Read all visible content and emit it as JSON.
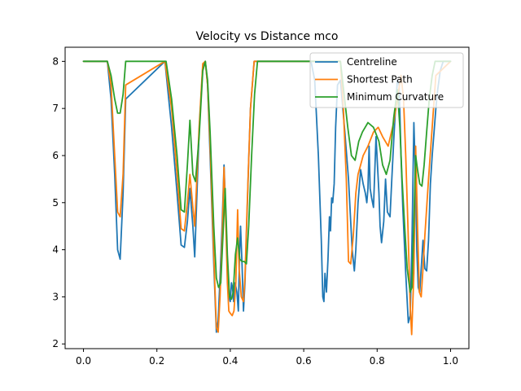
{
  "chart_data": {
    "type": "line",
    "title": "Velocity vs Distance mco",
    "xlabel": "",
    "ylabel": "",
    "xlim": [
      -0.05,
      1.05
    ],
    "ylim": [
      1.9,
      8.3
    ],
    "xticks": [
      0.0,
      0.2,
      0.4,
      0.6,
      0.8,
      1.0
    ],
    "xtick_labels": [
      "0.0",
      "0.2",
      "0.4",
      "0.6",
      "0.8",
      "1.0"
    ],
    "yticks": [
      2,
      3,
      4,
      5,
      6,
      7,
      8
    ],
    "ytick_labels": [
      "2",
      "3",
      "4",
      "5",
      "6",
      "7",
      "8"
    ],
    "grid": false,
    "legend_position": "top-right",
    "series": [
      {
        "name": "Centreline",
        "color": "#1f77b4",
        "x": [
          0.0,
          0.065,
          0.075,
          0.085,
          0.093,
          0.1,
          0.108,
          0.115,
          0.222,
          0.24,
          0.255,
          0.266,
          0.275,
          0.283,
          0.29,
          0.298,
          0.303,
          0.315,
          0.325,
          0.332,
          0.338,
          0.345,
          0.355,
          0.362,
          0.367,
          0.372,
          0.378,
          0.383,
          0.388,
          0.392,
          0.396,
          0.4,
          0.403,
          0.406,
          0.409,
          0.413,
          0.418,
          0.422,
          0.425,
          0.428,
          0.432,
          0.436,
          0.44,
          0.445,
          0.45,
          0.455,
          0.465,
          0.475,
          0.485,
          0.62,
          0.63,
          0.64,
          0.648,
          0.652,
          0.655,
          0.658,
          0.662,
          0.666,
          0.67,
          0.673,
          0.676,
          0.679,
          0.683,
          0.687,
          0.692,
          0.7,
          0.712,
          0.722,
          0.732,
          0.738,
          0.742,
          0.748,
          0.755,
          0.762,
          0.768,
          0.772,
          0.775,
          0.778,
          0.781,
          0.785,
          0.79,
          0.797,
          0.805,
          0.808,
          0.812,
          0.818,
          0.823,
          0.828,
          0.835,
          0.84,
          0.845,
          0.85,
          0.855,
          0.86,
          0.865,
          0.87,
          0.878,
          0.885,
          0.89,
          0.895,
          0.9,
          0.905,
          0.908,
          0.912,
          0.916,
          0.92,
          0.925,
          0.93,
          0.935,
          0.94,
          0.945,
          0.95,
          0.955,
          0.96,
          0.965,
          0.972,
          0.98,
          1.0
        ],
        "y": [
          8.0,
          8.0,
          7.2,
          5.6,
          4.0,
          3.8,
          5.2,
          7.2,
          8.0,
          6.6,
          5.2,
          4.1,
          4.05,
          4.6,
          5.3,
          4.5,
          3.85,
          6.5,
          7.9,
          8.0,
          7.5,
          6.0,
          3.7,
          2.25,
          2.5,
          3.4,
          4.6,
          5.8,
          4.7,
          3.6,
          3.0,
          2.9,
          3.3,
          3.2,
          2.9,
          3.3,
          3.1,
          2.7,
          3.9,
          4.5,
          3.7,
          2.7,
          3.3,
          4.6,
          5.9,
          7.0,
          8.0,
          8.0,
          8.0,
          8.0,
          7.6,
          6.0,
          4.2,
          3.0,
          2.9,
          3.5,
          3.1,
          3.8,
          4.7,
          4.4,
          5.1,
          5.0,
          5.4,
          6.6,
          7.5,
          7.6,
          6.5,
          5.5,
          4.0,
          3.55,
          4.0,
          5.0,
          5.7,
          5.4,
          5.2,
          5.0,
          5.3,
          6.2,
          5.3,
          5.1,
          4.9,
          6.4,
          5.2,
          4.5,
          4.15,
          4.6,
          5.5,
          4.8,
          4.7,
          5.5,
          6.3,
          7.0,
          7.6,
          7.5,
          6.0,
          4.9,
          3.5,
          2.45,
          2.6,
          4.2,
          6.7,
          5.4,
          4.0,
          3.2,
          3.1,
          3.6,
          4.2,
          3.6,
          3.55,
          4.2,
          5.4,
          6.0,
          6.5,
          7.0,
          7.4,
          7.8,
          8.0,
          8.0
        ]
      },
      {
        "name": "Shortest Path",
        "color": "#ff7f0e",
        "x": [
          0.0,
          0.065,
          0.075,
          0.085,
          0.093,
          0.1,
          0.108,
          0.115,
          0.222,
          0.24,
          0.255,
          0.266,
          0.275,
          0.283,
          0.29,
          0.298,
          0.303,
          0.315,
          0.325,
          0.332,
          0.338,
          0.345,
          0.355,
          0.362,
          0.367,
          0.372,
          0.378,
          0.383,
          0.388,
          0.392,
          0.396,
          0.4,
          0.405,
          0.41,
          0.415,
          0.42,
          0.424,
          0.43,
          0.436,
          0.44,
          0.445,
          0.45,
          0.455,
          0.465,
          0.475,
          0.485,
          0.7,
          0.708,
          0.716,
          0.722,
          0.728,
          0.735,
          0.742,
          0.748,
          0.755,
          0.762,
          0.775,
          0.79,
          0.803,
          0.815,
          0.83,
          0.845,
          0.855,
          0.865,
          0.872,
          0.878,
          0.884,
          0.89,
          0.894,
          0.9,
          0.905,
          0.91,
          0.915,
          0.92,
          0.925,
          0.93,
          0.94,
          0.95,
          0.96,
          1.0
        ],
        "y": [
          8.0,
          8.0,
          7.5,
          6.0,
          4.8,
          4.7,
          5.6,
          7.5,
          8.0,
          7.0,
          5.6,
          4.45,
          4.4,
          5.0,
          5.6,
          4.9,
          4.5,
          6.6,
          7.95,
          8.0,
          7.5,
          6.2,
          3.9,
          2.35,
          2.25,
          3.0,
          4.3,
          5.75,
          4.5,
          3.3,
          2.7,
          2.65,
          2.6,
          2.7,
          3.3,
          4.85,
          3.6,
          3.0,
          2.9,
          3.4,
          4.7,
          5.9,
          7.0,
          8.0,
          8.0,
          8.0,
          8.0,
          7.0,
          5.5,
          3.75,
          3.7,
          4.3,
          5.2,
          5.6,
          5.8,
          6.0,
          6.2,
          6.5,
          6.6,
          6.4,
          6.2,
          6.7,
          7.2,
          7.7,
          7.2,
          6.0,
          4.5,
          2.8,
          2.2,
          3.5,
          6.2,
          4.5,
          3.1,
          3.0,
          3.6,
          4.3,
          5.5,
          6.6,
          7.7,
          8.0
        ]
      },
      {
        "name": "Minimum Curvature",
        "color": "#2ca02c",
        "x": [
          0.0,
          0.065,
          0.075,
          0.085,
          0.093,
          0.1,
          0.108,
          0.115,
          0.225,
          0.24,
          0.255,
          0.266,
          0.275,
          0.283,
          0.29,
          0.298,
          0.305,
          0.315,
          0.325,
          0.332,
          0.338,
          0.345,
          0.355,
          0.362,
          0.368,
          0.374,
          0.38,
          0.386,
          0.392,
          0.398,
          0.403,
          0.408,
          0.414,
          0.42,
          0.426,
          0.432,
          0.438,
          0.444,
          0.45,
          0.458,
          0.466,
          0.474,
          0.485,
          0.7,
          0.71,
          0.72,
          0.73,
          0.74,
          0.75,
          0.76,
          0.775,
          0.79,
          0.805,
          0.815,
          0.825,
          0.835,
          0.845,
          0.855,
          0.862,
          0.868,
          0.875,
          0.882,
          0.89,
          0.895,
          0.9,
          0.905,
          0.91,
          0.916,
          0.922,
          0.928,
          0.935,
          0.942,
          0.95,
          0.958,
          0.965,
          1.0
        ],
        "y": [
          8.0,
          8.0,
          7.7,
          7.2,
          6.9,
          6.9,
          7.3,
          8.0,
          8.0,
          7.2,
          6.0,
          4.85,
          4.8,
          5.8,
          6.75,
          5.6,
          5.45,
          6.4,
          7.8,
          8.0,
          7.6,
          6.5,
          4.5,
          3.4,
          3.2,
          3.3,
          4.3,
          5.3,
          3.9,
          3.0,
          2.95,
          3.1,
          3.9,
          4.25,
          3.8,
          3.75,
          3.75,
          3.7,
          4.5,
          6.0,
          7.3,
          8.0,
          8.0,
          8.0,
          7.3,
          6.6,
          6.0,
          5.9,
          6.3,
          6.5,
          6.7,
          6.6,
          6.3,
          5.8,
          5.6,
          5.9,
          6.8,
          7.4,
          6.6,
          5.5,
          4.5,
          3.6,
          3.1,
          3.2,
          4.6,
          6.0,
          5.7,
          5.4,
          5.35,
          5.8,
          6.5,
          7.2,
          7.7,
          8.0,
          8.0,
          8.0
        ]
      }
    ]
  }
}
